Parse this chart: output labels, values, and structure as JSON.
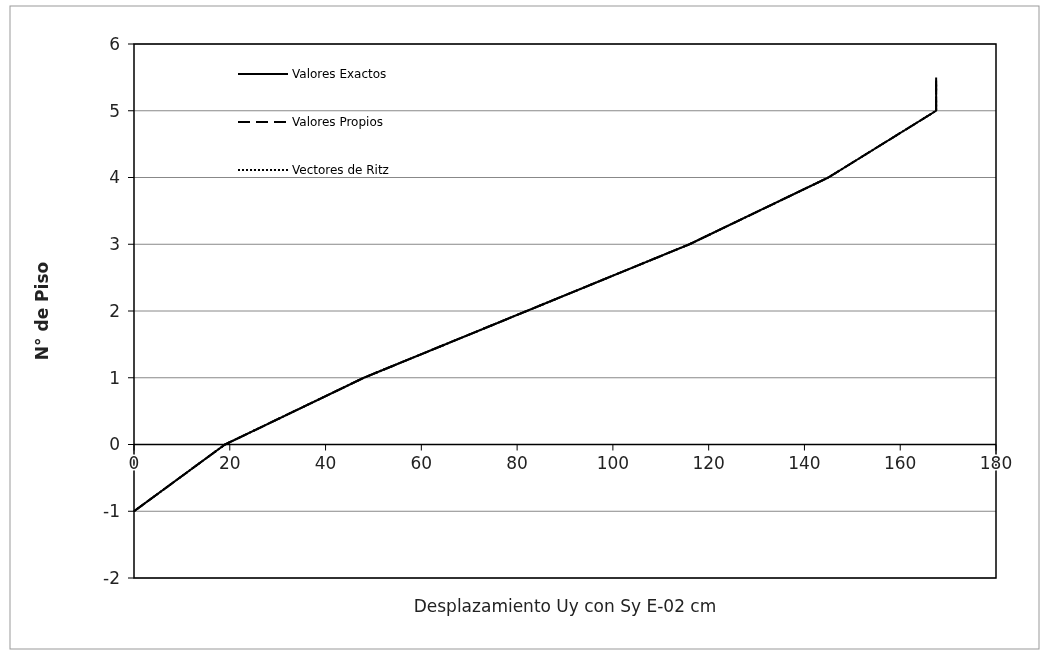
{
  "chart_data": {
    "type": "line",
    "xlabel": "Desplazamiento Uy  con Sy  E-02 cm",
    "ylabel": "N° de Piso",
    "xlim": [
      0,
      180
    ],
    "xticks": [
      0,
      20,
      40,
      60,
      80,
      100,
      120,
      140,
      160,
      180
    ],
    "ylim": [
      -2,
      6
    ],
    "yticks": [
      -2,
      -1,
      0,
      1,
      2,
      3,
      4,
      5,
      6
    ],
    "grid": "y",
    "legend": "top left",
    "series": [
      {
        "name": "Valores Exactos",
        "color": "#000000",
        "line_style": "solid",
        "x": [
          0,
          19,
          48,
          82,
          116,
          145,
          167.5,
          167.5
        ],
        "values": [
          -1,
          0,
          1,
          2,
          3,
          4,
          5,
          5.5
        ]
      },
      {
        "name": "Valores Propios",
        "color": "#000000",
        "line_style": "dashed",
        "x": [
          0,
          19,
          48,
          82,
          116,
          145,
          167.5,
          167.5
        ],
        "values": [
          -1,
          0,
          1,
          2,
          3,
          4,
          5,
          5.5
        ]
      },
      {
        "name": "Vectores de Ritz",
        "color": "#000000",
        "line_style": "dotted",
        "x": [
          0,
          19,
          48,
          82,
          116,
          145,
          167.5,
          167.5
        ],
        "values": [
          -1,
          0,
          1,
          2,
          3,
          4,
          5,
          5.4
        ]
      }
    ]
  }
}
